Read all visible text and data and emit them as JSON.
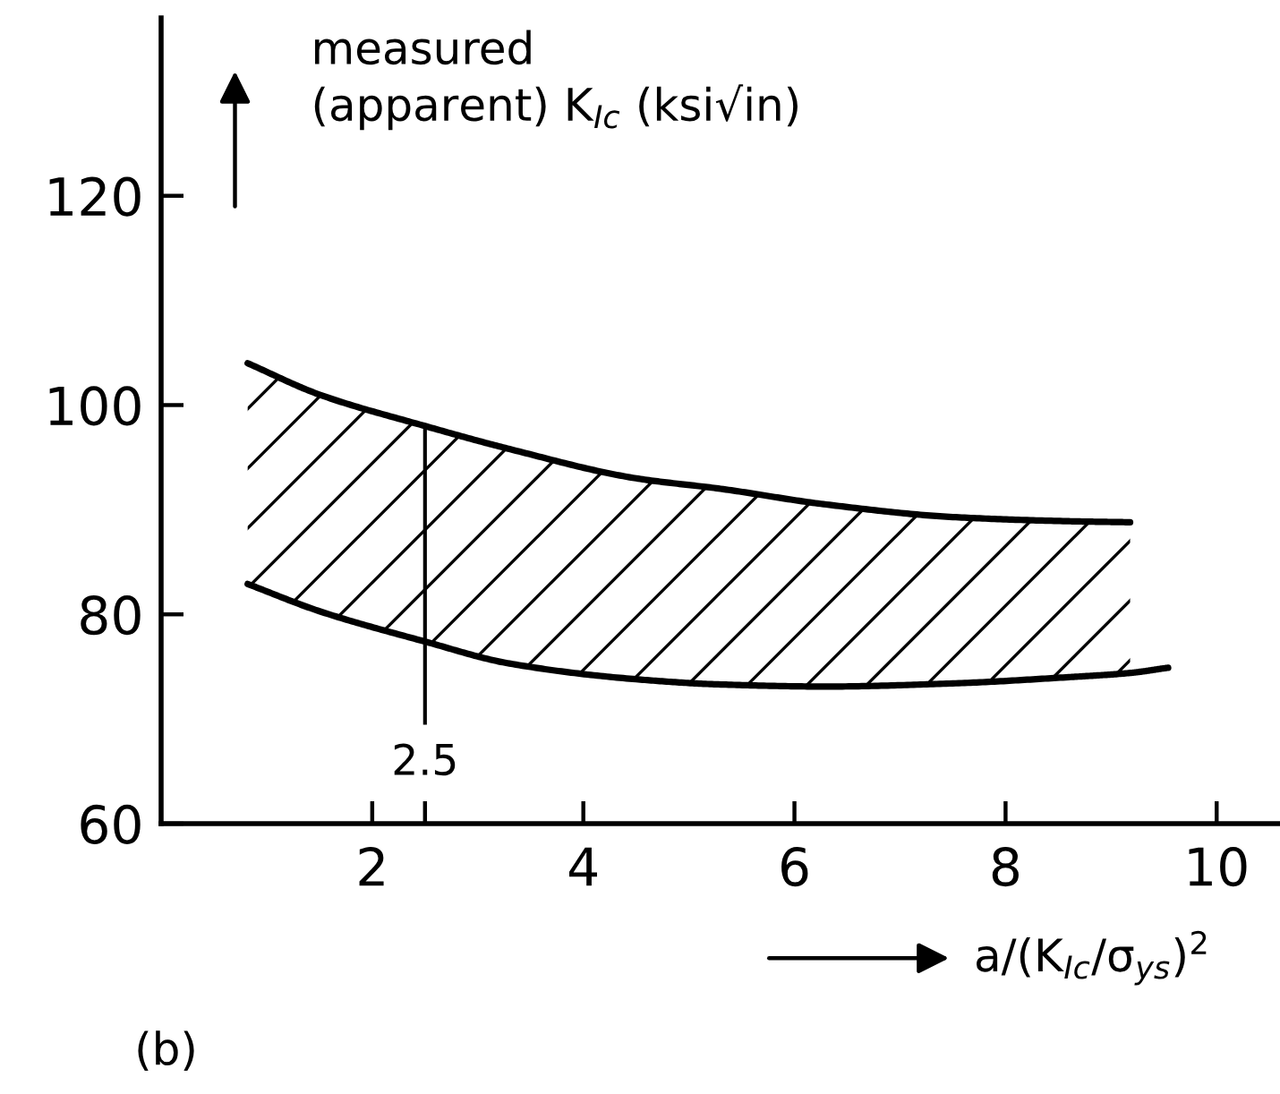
{
  "chart_data": {
    "type": "line",
    "xlabel": "a/(K$_{Ic}$/σ$_{ys}$)$^{2}$",
    "ylabel": "measured\n(apparent) K$_{Ic}$ (ksi√in)",
    "annotations": [
      "(b)"
    ],
    "series": [
      {
        "color": "#000000",
        "x": [
          0.82,
          1.5,
          2.5,
          3.3,
          4.5,
          5.3,
          6.3,
          7.5,
          8.6,
          9.18
        ],
        "values": [
          104,
          101,
          98,
          95.8,
          93,
          92,
          90.5,
          89.3,
          88.9,
          88.8
        ],
        "upper": [
          104,
          101,
          98,
          95.8,
          93,
          92,
          90.5,
          89.3,
          88.9,
          88.8
        ],
        "lower": [
          82.9,
          80.3,
          77.4,
          75.3,
          73.8,
          73.3,
          73.1,
          73.4,
          74,
          74.4
        ]
      },
      {
        "color": "#000000",
        "x": [
          0.82,
          1.5,
          2.5,
          3.3,
          4.5,
          5.3,
          6.3,
          7.5,
          8.6,
          9.18,
          9.54
        ],
        "values": [
          82.9,
          80.3,
          77.4,
          75.3,
          73.8,
          73.3,
          73.1,
          73.4,
          74,
          74.4,
          74.9
        ]
      }
    ],
    "ref_lines": [
      {
        "axis": "x",
        "value": 2.5,
        "label": "2.5"
      }
    ],
    "xlim": [
      0,
      10.6
    ],
    "ylim": [
      60,
      137
    ],
    "xticks": [
      2,
      {
        "value": 2.5,
        "label": null
      },
      4,
      6,
      8,
      10
    ],
    "yticks": [
      60,
      80,
      100,
      120
    ]
  }
}
